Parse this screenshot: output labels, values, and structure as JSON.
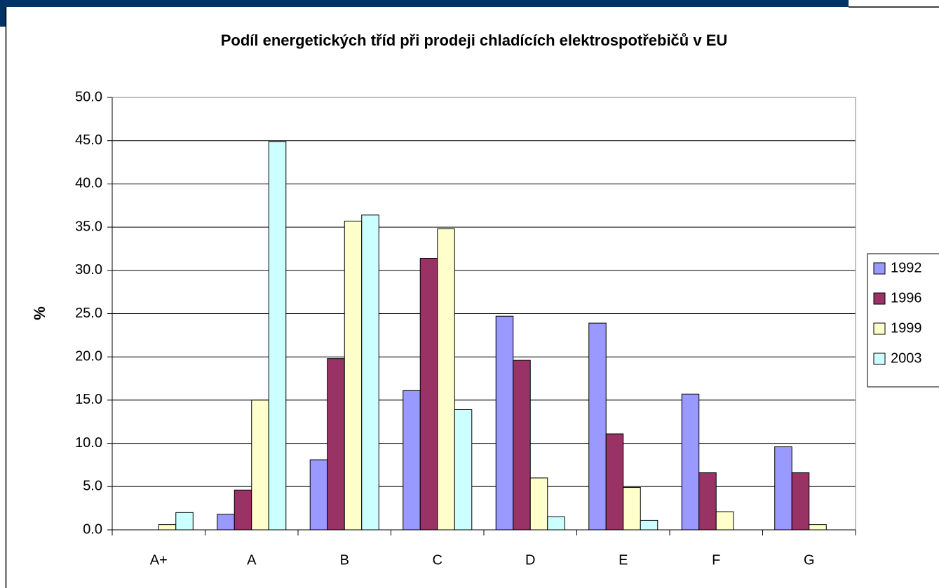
{
  "chart_data": {
    "type": "bar",
    "title": "Podíl energetických tříd při prodeji chladících elektrospotřebičů v EU",
    "y_label": "%",
    "categories": [
      "A+",
      "A",
      "B",
      "C",
      "D",
      "E",
      "F",
      "G"
    ],
    "series": [
      {
        "name": "1992",
        "color": "#9999ff",
        "values": [
          0,
          1.8,
          8.1,
          16.1,
          24.7,
          23.9,
          15.7,
          9.6
        ]
      },
      {
        "name": "1996",
        "color": "#993366",
        "values": [
          0,
          4.6,
          19.8,
          31.4,
          19.6,
          11.1,
          6.6,
          6.6
        ]
      },
      {
        "name": "1999",
        "color": "#ffffcc",
        "values": [
          0.6,
          15.0,
          35.7,
          34.8,
          6.0,
          4.9,
          2.1,
          0.6
        ]
      },
      {
        "name": "2003",
        "color": "#ccffff",
        "values": [
          2.0,
          44.9,
          36.4,
          13.9,
          1.5,
          1.1,
          0,
          0
        ]
      }
    ],
    "ylim": [
      0,
      50
    ],
    "yticks": [
      {
        "value": 0,
        "label": "0.0"
      },
      {
        "value": 5,
        "label": "5.0"
      },
      {
        "value": 10,
        "label": "10.0"
      },
      {
        "value": 15,
        "label": "15.0"
      },
      {
        "value": 20,
        "label": "20.0"
      },
      {
        "value": 25,
        "label": "25.0"
      },
      {
        "value": 30,
        "label": "30.0"
      },
      {
        "value": 35,
        "label": "35.0"
      },
      {
        "value": 40,
        "label": "40.0"
      },
      {
        "value": 45,
        "label": "45.0"
      },
      {
        "value": 50,
        "label": "50.0"
      }
    ],
    "grid": true,
    "legend": "right"
  }
}
